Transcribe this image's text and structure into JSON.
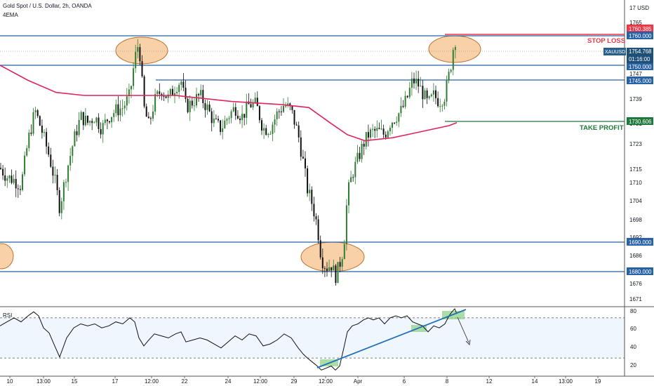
{
  "header": {
    "title": "Gold Spot / U.S. Dollar, 2h, OANDA",
    "indicator": "4EMA"
  },
  "chart_data": {
    "type": "candlestick",
    "currency": "USD",
    "price_axis": {
      "ticks": [
        "1765",
        "1747",
        "1739",
        "1731",
        "1723",
        "1715",
        "1710",
        "1704",
        "1698",
        "1692",
        "1686",
        "1680",
        "1676",
        "1671"
      ],
      "range": [
        1669,
        1776
      ]
    },
    "x_axis": {
      "labels": [
        "10",
        "13:00",
        "15",
        "17",
        "12:00",
        "22",
        "24",
        "12:00",
        "29",
        "12:00",
        "Apr",
        "6",
        "8",
        "12",
        "14",
        "13:00",
        "19"
      ]
    },
    "levels": [
      {
        "label": "1760.000",
        "value": 1760.0,
        "color": "#2962a4"
      },
      {
        "label": "1760.385",
        "value": 1760.385,
        "color": "#f23645"
      },
      {
        "label": "1750.000",
        "value": 1750.0,
        "color": "#2962a4"
      },
      {
        "label": "1745.000",
        "value": 1745.0,
        "color": "#2962a4"
      },
      {
        "label": "1730.606",
        "value": 1730.606,
        "color": "#1e7a3a"
      },
      {
        "label": "1690.000",
        "value": 1690.0,
        "color": "#2962a4"
      },
      {
        "label": "1680.000",
        "value": 1680.0,
        "color": "#2962a4"
      }
    ],
    "annotations": {
      "stop_loss": "STOP LOSS",
      "take_profit": "TAKE PROFIT"
    },
    "last_price": {
      "symbol": "XAUUSD",
      "price": "1754.768",
      "countdown": "01:16:00"
    },
    "price_path": [
      [
        0,
        1716
      ],
      [
        10,
        1713
      ],
      [
        20,
        1712
      ],
      [
        30,
        1710
      ],
      [
        40,
        1725
      ],
      [
        50,
        1735
      ],
      [
        60,
        1728
      ],
      [
        70,
        1720
      ],
      [
        78,
        1712
      ],
      [
        85,
        1703
      ],
      [
        95,
        1715
      ],
      [
        105,
        1725
      ],
      [
        115,
        1733
      ],
      [
        125,
        1731
      ],
      [
        135,
        1733
      ],
      [
        145,
        1729
      ],
      [
        155,
        1733
      ],
      [
        165,
        1735
      ],
      [
        175,
        1736
      ],
      [
        185,
        1740
      ],
      [
        192,
        1752
      ],
      [
        198,
        1758
      ],
      [
        205,
        1736
      ],
      [
        212,
        1730
      ],
      [
        220,
        1738
      ],
      [
        230,
        1742
      ],
      [
        240,
        1739
      ],
      [
        250,
        1743
      ],
      [
        258,
        1745
      ],
      [
        265,
        1736
      ],
      [
        275,
        1738
      ],
      [
        285,
        1740
      ],
      [
        295,
        1736
      ],
      [
        305,
        1731
      ],
      [
        315,
        1729
      ],
      [
        325,
        1733
      ],
      [
        335,
        1736
      ],
      [
        345,
        1733
      ],
      [
        355,
        1737
      ],
      [
        365,
        1737
      ],
      [
        375,
        1729
      ],
      [
        385,
        1729
      ],
      [
        395,
        1734
      ],
      [
        405,
        1737
      ],
      [
        415,
        1735
      ],
      [
        425,
        1727
      ],
      [
        432,
        1718
      ],
      [
        438,
        1709
      ],
      [
        445,
        1704
      ],
      [
        452,
        1697
      ],
      [
        458,
        1686
      ],
      [
        465,
        1683
      ],
      [
        472,
        1684
      ],
      [
        478,
        1680
      ],
      [
        484,
        1684
      ],
      [
        490,
        1690
      ],
      [
        495,
        1707
      ],
      [
        502,
        1714
      ],
      [
        510,
        1719
      ],
      [
        518,
        1724
      ],
      [
        525,
        1727
      ],
      [
        532,
        1728
      ],
      [
        540,
        1728
      ],
      [
        548,
        1727
      ],
      [
        556,
        1731
      ],
      [
        564,
        1733
      ],
      [
        572,
        1735
      ],
      [
        580,
        1739
      ],
      [
        588,
        1745
      ],
      [
        595,
        1744
      ],
      [
        602,
        1741
      ],
      [
        610,
        1737
      ],
      [
        618,
        1740
      ],
      [
        626,
        1738
      ],
      [
        634,
        1740
      ],
      [
        640,
        1747
      ],
      [
        644,
        1752
      ],
      [
        648,
        1760
      ],
      [
        651,
        1755
      ]
    ],
    "ema": [
      [
        0,
        1750
      ],
      [
        40,
        1745
      ],
      [
        80,
        1741
      ],
      [
        120,
        1740
      ],
      [
        180,
        1740
      ],
      [
        250,
        1740
      ],
      [
        330,
        1738
      ],
      [
        400,
        1737
      ],
      [
        440,
        1736
      ],
      [
        470,
        1731
      ],
      [
        495,
        1727
      ],
      [
        520,
        1725
      ],
      [
        560,
        1726
      ],
      [
        600,
        1728
      ],
      [
        640,
        1730
      ],
      [
        651,
        1731
      ]
    ],
    "rsi": {
      "label": "RSI",
      "ticks": [
        "80",
        "60",
        "40",
        "20"
      ],
      "upper_band": 70,
      "lower_band": 30,
      "values": [
        [
          0,
          62
        ],
        [
          10,
          66
        ],
        [
          20,
          70
        ],
        [
          30,
          66
        ],
        [
          40,
          72
        ],
        [
          48,
          76
        ],
        [
          55,
          72
        ],
        [
          62,
          60
        ],
        [
          70,
          55
        ],
        [
          78,
          42
        ],
        [
          85,
          31
        ],
        [
          95,
          50
        ],
        [
          105,
          60
        ],
        [
          115,
          64
        ],
        [
          125,
          62
        ],
        [
          135,
          64
        ],
        [
          145,
          60
        ],
        [
          155,
          62
        ],
        [
          165,
          66
        ],
        [
          175,
          64
        ],
        [
          185,
          70
        ],
        [
          192,
          66
        ],
        [
          198,
          50
        ],
        [
          205,
          42
        ],
        [
          212,
          48
        ],
        [
          220,
          54
        ],
        [
          230,
          52
        ],
        [
          240,
          50
        ],
        [
          250,
          54
        ],
        [
          258,
          56
        ],
        [
          265,
          46
        ],
        [
          275,
          48
        ],
        [
          285,
          50
        ],
        [
          295,
          48
        ],
        [
          305,
          44
        ],
        [
          315,
          40
        ],
        [
          325,
          46
        ],
        [
          335,
          52
        ],
        [
          345,
          48
        ],
        [
          355,
          54
        ],
        [
          365,
          52
        ],
        [
          375,
          42
        ],
        [
          385,
          44
        ],
        [
          395,
          48
        ],
        [
          405,
          54
        ],
        [
          415,
          50
        ],
        [
          425,
          40
        ],
        [
          432,
          34
        ],
        [
          438,
          30
        ],
        [
          445,
          26
        ],
        [
          452,
          22
        ],
        [
          458,
          18
        ],
        [
          465,
          20
        ],
        [
          472,
          22
        ],
        [
          478,
          18
        ],
        [
          484,
          22
        ],
        [
          490,
          40
        ],
        [
          495,
          56
        ],
        [
          502,
          62
        ],
        [
          510,
          64
        ],
        [
          518,
          68
        ],
        [
          525,
          70
        ],
        [
          532,
          68
        ],
        [
          540,
          70
        ],
        [
          548,
          64
        ],
        [
          556,
          70
        ],
        [
          564,
          72
        ],
        [
          572,
          70
        ],
        [
          580,
          72
        ],
        [
          588,
          66
        ],
        [
          595,
          64
        ],
        [
          602,
          62
        ],
        [
          610,
          56
        ],
        [
          618,
          62
        ],
        [
          626,
          60
        ],
        [
          634,
          64
        ],
        [
          640,
          72
        ],
        [
          644,
          76
        ],
        [
          648,
          79
        ],
        [
          651,
          74
        ]
      ]
    }
  }
}
